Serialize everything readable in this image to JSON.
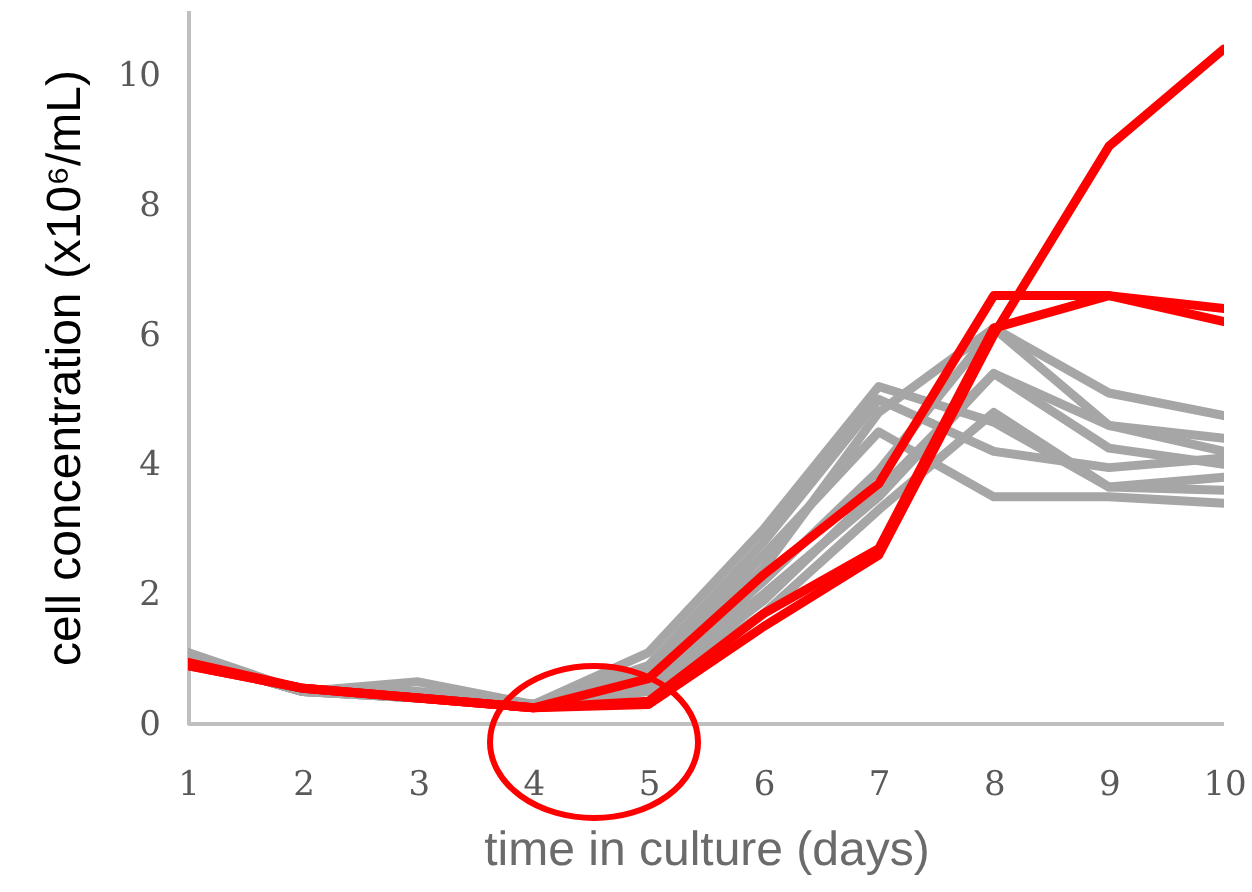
{
  "chart_data": {
    "type": "line",
    "xlabel": "time in culture (days)",
    "ylabel": "cell concentration (x10⁶/mL)",
    "x": [
      1,
      2,
      3,
      4,
      5,
      6,
      7,
      8,
      9,
      10
    ],
    "xlim": [
      1,
      10
    ],
    "xticks": [
      1,
      2,
      3,
      4,
      5,
      6,
      7,
      8,
      9,
      10
    ],
    "ylim": [
      0,
      11
    ],
    "yticks": [
      0,
      2,
      4,
      6,
      8,
      10
    ],
    "line_style": "solid",
    "series": [
      {
        "color": "#a6a6a6",
        "values": [
          1.1,
          0.5,
          0.65,
          0.3,
          1.1,
          3.0,
          5.2,
          4.65,
          3.65,
          3.8
        ]
      },
      {
        "color": "#a6a6a6",
        "values": [
          1.05,
          0.5,
          0.5,
          0.3,
          0.9,
          2.8,
          5.0,
          4.2,
          3.95,
          4.1
        ]
      },
      {
        "color": "#a6a6a6",
        "values": [
          1.0,
          0.5,
          0.45,
          0.3,
          0.8,
          2.6,
          4.5,
          3.5,
          3.5,
          3.4
        ]
      },
      {
        "color": "#a6a6a6",
        "values": [
          1.0,
          0.5,
          0.45,
          0.3,
          0.7,
          2.4,
          4.8,
          6.1,
          5.1,
          4.75
        ]
      },
      {
        "color": "#a6a6a6",
        "values": [
          1.0,
          0.5,
          0.4,
          0.3,
          0.6,
          2.2,
          3.9,
          6.1,
          4.6,
          4.4
        ]
      },
      {
        "color": "#a6a6a6",
        "values": [
          1.0,
          0.5,
          0.4,
          0.3,
          0.6,
          2.0,
          3.5,
          5.4,
          4.6,
          4.2
        ]
      },
      {
        "color": "#a6a6a6",
        "values": [
          1.0,
          0.5,
          0.4,
          0.3,
          0.55,
          1.9,
          3.6,
          5.4,
          4.25,
          4.0
        ]
      },
      {
        "color": "#a6a6a6",
        "values": [
          1.0,
          0.5,
          0.4,
          0.3,
          0.5,
          1.7,
          3.3,
          4.8,
          3.65,
          3.6
        ]
      },
      {
        "color": "#ff0000",
        "values": [
          0.9,
          0.55,
          0.4,
          0.25,
          0.7,
          2.3,
          3.7,
          6.6,
          6.6,
          6.4
        ]
      },
      {
        "color": "#ff0000",
        "values": [
          0.9,
          0.55,
          0.4,
          0.25,
          0.35,
          1.7,
          2.7,
          6.1,
          6.6,
          6.2
        ]
      },
      {
        "color": "#ff0000",
        "values": [
          0.95,
          0.55,
          0.4,
          0.25,
          0.3,
          1.5,
          2.6,
          6.0,
          8.9,
          10.4
        ]
      }
    ]
  }
}
